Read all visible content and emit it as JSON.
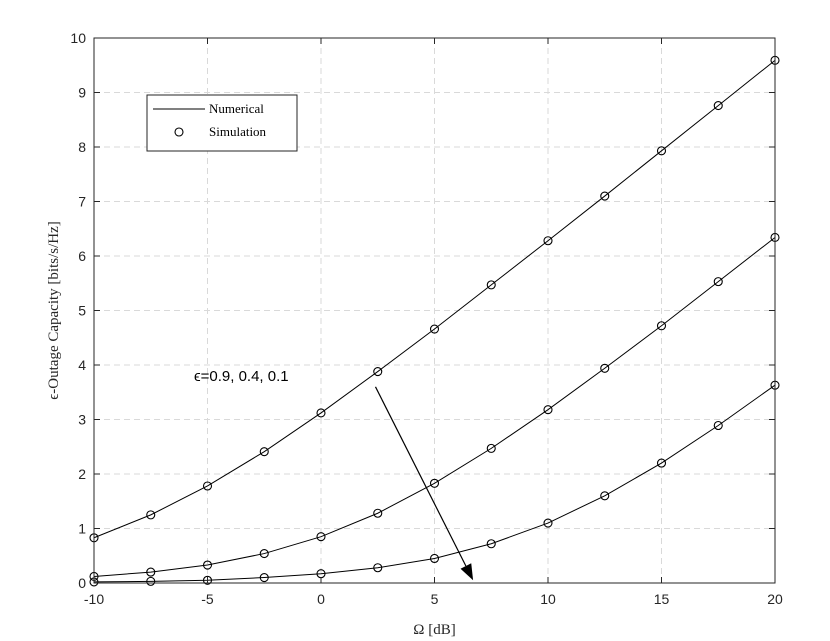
{
  "chart_data": {
    "type": "line",
    "title": "",
    "xlabel": "Ω [dB]",
    "ylabel": "ϵ-Outage Capacity [bits/s/Hz]",
    "xlim": [
      -10,
      20
    ],
    "ylim": [
      0,
      10
    ],
    "xticks": [
      -10,
      -5,
      0,
      5,
      10,
      15,
      20
    ],
    "yticks": [
      0,
      1,
      2,
      3,
      4,
      5,
      6,
      7,
      8,
      9,
      10
    ],
    "grid": true,
    "legend": {
      "placement": "top-left",
      "entries": [
        {
          "label": "Numerical",
          "style": "line"
        },
        {
          "label": "Simulation",
          "style": "circle-marker"
        }
      ]
    },
    "annotation": {
      "text": "ϵ=0.9, 0.4, 0.1",
      "arrow_from": [
        2.4,
        3.6
      ],
      "arrow_to": [
        6.7,
        0.05
      ]
    },
    "x": [
      -10,
      -7.5,
      -5,
      -2.5,
      0,
      2.5,
      5,
      7.5,
      10,
      12.5,
      15,
      17.5,
      20
    ],
    "series": [
      {
        "values": [
          0.83,
          1.25,
          1.78,
          2.41,
          3.12,
          3.88,
          4.66,
          5.47,
          6.28,
          7.1,
          7.93,
          8.76,
          9.59
        ]
      },
      {
        "values": [
          0.12,
          0.2,
          0.33,
          0.54,
          0.85,
          1.28,
          1.83,
          2.47,
          3.18,
          3.94,
          4.72,
          5.53,
          6.34
        ]
      },
      {
        "values": [
          0.02,
          0.03,
          0.05,
          0.1,
          0.17,
          0.28,
          0.45,
          0.72,
          1.1,
          1.6,
          2.2,
          2.89,
          3.63
        ]
      }
    ]
  }
}
